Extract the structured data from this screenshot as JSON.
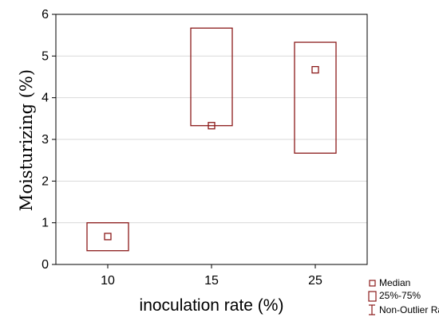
{
  "chart_data": {
    "type": "boxplot",
    "categories": [
      "10",
      "15",
      "25"
    ],
    "median": [
      0.67,
      3.33,
      4.67
    ],
    "q1": [
      0.33,
      3.33,
      2.67
    ],
    "q3": [
      1.0,
      5.67,
      5.33
    ],
    "xlabel": "inoculation rate (%)",
    "ylabel": "Moisturizing (%)",
    "ylim": [
      0,
      6
    ],
    "yticks": [
      "0",
      "1",
      "2",
      "3",
      "4",
      "5",
      "6"
    ],
    "grid": true,
    "legend": {
      "position": "bottom-right",
      "items": [
        "Median",
        "25%-75%",
        "Non-Outlier Range"
      ]
    },
    "colors": {
      "series": "#8b1a1a",
      "grid": "#d9d9d9",
      "axis": "#000000"
    }
  }
}
